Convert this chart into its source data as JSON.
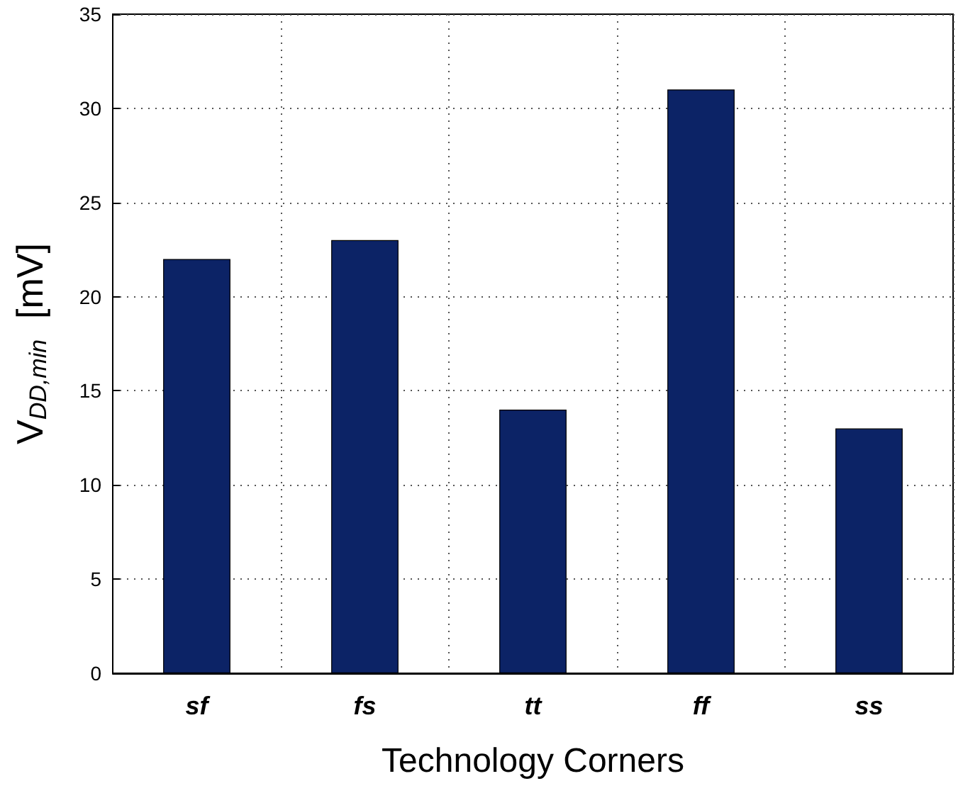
{
  "chart_data": {
    "type": "bar",
    "xlabel": "Technology Corners",
    "ylabel": "V$_{DD,min}$  [mV]",
    "categories": [
      "sf",
      "fs",
      "tt",
      "ff",
      "ss"
    ],
    "values": [
      22,
      23,
      14,
      31,
      13
    ],
    "color": "#0c2366",
    "ylim": [
      0,
      35
    ],
    "yticks": [
      0,
      5,
      10,
      15,
      20,
      25,
      30,
      35
    ],
    "grid": true
  }
}
